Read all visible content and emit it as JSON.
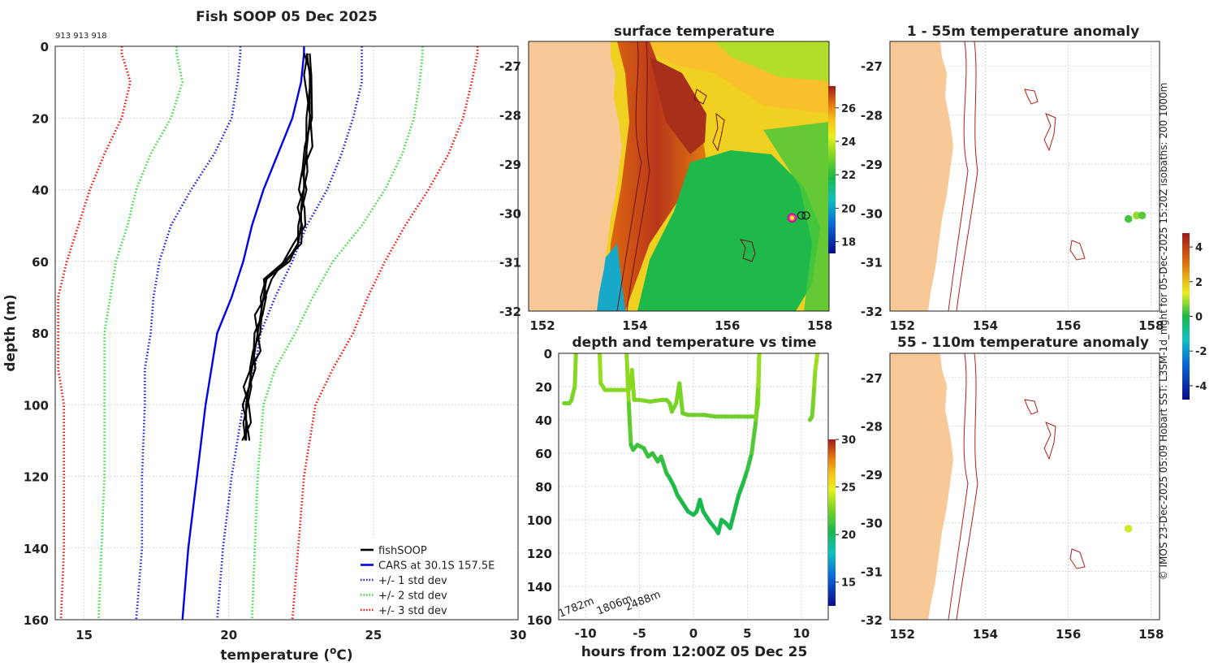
{
  "side_note": "© IMOS 23-Dec-2025 05:09 Hobart SST: L3SM-1d_night for 05-Dec-2025 15:20Z isobaths: 200  1000m",
  "colors": {
    "fishsoop": "#000000",
    "cars": "#0000ee",
    "std1": "#1a1ad8",
    "std2": "#33dd33",
    "std3": "#ee1100",
    "land": "#f8c896",
    "isobath": "#b02018"
  },
  "chart_data": [
    {
      "id": "profile",
      "type": "line",
      "title": "Fish SOOP 05 Dec 2025",
      "top_note": "913 913 918",
      "xlabel": "temperature (",
      "xlabel_sup": "o",
      "xlabel_end": "C)",
      "ylabel": "depth (m)",
      "xlim": [
        14,
        30
      ],
      "ylim": [
        0,
        160
      ],
      "xticks": [
        15,
        20,
        25,
        30
      ],
      "yticks": [
        0,
        20,
        40,
        60,
        80,
        100,
        120,
        140,
        160
      ],
      "legend": [
        "fishSOOP",
        "CARS at 30.1S 157.5E",
        "+/- 1 std dev",
        "+/- 2 std dev",
        "+/- 3 std dev"
      ],
      "depth": [
        0,
        2,
        10,
        20,
        30,
        40,
        50,
        60,
        70,
        80,
        90,
        100,
        120,
        140,
        160
      ],
      "cars": [
        22.6,
        22.6,
        22.5,
        22.2,
        21.7,
        21.2,
        20.8,
        20.5,
        20.1,
        19.6,
        19.4,
        19.2,
        18.9,
        18.6,
        18.4
      ],
      "std1_lo": [
        20.4,
        20.4,
        20.3,
        20.1,
        19.5,
        18.7,
        18.0,
        17.6,
        17.4,
        17.3,
        17.1,
        17.1,
        17.0,
        17.0,
        16.8
      ],
      "std1_hi": [
        24.6,
        24.6,
        24.6,
        24.3,
        23.9,
        23.4,
        22.7,
        22.2,
        21.6,
        21.1,
        20.9,
        20.5,
        20.1,
        19.8,
        19.6
      ],
      "std2_lo": [
        18.2,
        18.2,
        18.4,
        18.0,
        17.3,
        16.8,
        16.5,
        16.1,
        15.9,
        15.7,
        15.7,
        15.7,
        15.7,
        15.6,
        15.5
      ],
      "std2_hi": [
        26.7,
        26.7,
        26.6,
        26.4,
        26.0,
        25.4,
        24.6,
        23.6,
        22.9,
        22.3,
        21.6,
        21.2,
        21.0,
        20.9,
        20.8
      ],
      "std3_lo": [
        16.3,
        16.3,
        16.6,
        16.3,
        15.7,
        15.2,
        14.8,
        14.4,
        14.1,
        14.1,
        14.1,
        14.3,
        14.3,
        14.3,
        14.2
      ],
      "std3_hi": [
        28.6,
        28.6,
        28.4,
        28.1,
        27.6,
        26.9,
        26.1,
        25.4,
        24.8,
        24.3,
        23.6,
        23.0,
        22.6,
        22.4,
        22.2
      ],
      "fish_depth": [
        2,
        8,
        20,
        28,
        35,
        40,
        45,
        50,
        55,
        60,
        65,
        70,
        75,
        80,
        85,
        90,
        95,
        100,
        105,
        110
      ],
      "fish_temp": [
        22.7,
        22.8,
        22.8,
        22.7,
        22.6,
        22.6,
        22.5,
        22.5,
        22.4,
        22.0,
        21.3,
        21.2,
        21.1,
        21.0,
        20.9,
        20.8,
        20.7,
        20.6,
        20.6,
        20.6
      ]
    },
    {
      "id": "sst",
      "type": "heatmap",
      "title": "surface temperature",
      "lon_range": [
        151.7,
        158.2
      ],
      "lat_range": [
        -32,
        -26.5
      ],
      "xticks": [
        152,
        154,
        156,
        158
      ],
      "yticks": [
        -27,
        -28,
        -29,
        -30,
        -31,
        -32
      ],
      "colorbar_ticks": [
        18,
        20,
        22,
        24,
        26
      ],
      "colorbar_range": [
        17.3,
        27.3
      ],
      "markers": [
        {
          "lon": 157.4,
          "lat": -30.1,
          "kind": "highlight"
        },
        {
          "lon": 157.6,
          "lat": -30.05,
          "kind": "open"
        },
        {
          "lon": 157.7,
          "lat": -30.05,
          "kind": "open"
        }
      ]
    },
    {
      "id": "depth-time",
      "type": "line",
      "title": "depth and temperature vs time",
      "xlabel": "hours from 12:00Z 05 Dec 25",
      "xlim": [
        -12.5,
        12.5
      ],
      "ylim": [
        0,
        160
      ],
      "xticks": [
        -10,
        -5,
        0,
        5,
        10
      ],
      "yticks": [
        0,
        20,
        40,
        60,
        80,
        100,
        120,
        140,
        160
      ],
      "colorbar_ticks": [
        15,
        20,
        25,
        30
      ],
      "colorbar_range": [
        12.5,
        30
      ],
      "bottom_depths": [
        "1782m",
        "1806m",
        "2488m"
      ],
      "tracks": [
        {
          "time": [
            -12,
            -11.5,
            -11.3,
            -11.2,
            -11,
            -10.9
          ],
          "depth": [
            30,
            30,
            28,
            25,
            20,
            0
          ],
          "temp": [
            22.5,
            22.5,
            22.5,
            22.6,
            22.8,
            23
          ]
        },
        {
          "time": [
            -8.7,
            -8.6,
            -8.2,
            -7.5,
            -6.5,
            -6.0,
            -5.8,
            -5.7,
            -5.5,
            -5.0,
            -4.0,
            -3.0,
            -2.5,
            -2.2,
            -2.0,
            -1.6,
            -1.3,
            -1.0,
            -0.5,
            0,
            1,
            2,
            3,
            4,
            5,
            5.8,
            6.0,
            6.1
          ],
          "depth": [
            0,
            18,
            22,
            22,
            22,
            22,
            18,
            10,
            28,
            28,
            29,
            28,
            28,
            30,
            35,
            30,
            18,
            36,
            37,
            37,
            37,
            38,
            38,
            38,
            38,
            38,
            30,
            0
          ],
          "temp": [
            23.5,
            23,
            22.9,
            22.9,
            22.9,
            22.9,
            23,
            23.2,
            22.7,
            22.7,
            22.6,
            22.6,
            22.6,
            22.5,
            22.4,
            22.5,
            22.8,
            22.3,
            22.3,
            22.3,
            22.3,
            22.3,
            22.3,
            22.3,
            22.3,
            22.3,
            22.5,
            23.5
          ]
        },
        {
          "time": [
            -6.2,
            -6.0,
            -5.8,
            -5.6,
            -5.2,
            -4.6,
            -4.2,
            -3.8,
            -3.3,
            -3.0,
            -2.5,
            -2.2,
            -1.8,
            -1.5,
            -1.0,
            -0.5,
            0.0,
            0.3,
            0.6,
            0.9,
            1.2,
            1.5,
            2.0,
            2.3,
            2.6,
            3.0,
            3.4,
            3.8,
            4.2,
            4.6,
            5.0,
            5.4,
            5.8,
            6.0,
            6.1
          ],
          "depth": [
            0,
            30,
            55,
            58,
            55,
            57,
            62,
            60,
            65,
            62,
            72,
            75,
            80,
            85,
            90,
            95,
            97,
            95,
            88,
            95,
            98,
            101,
            105,
            108,
            100,
            102,
            105,
            95,
            85,
            78,
            70,
            60,
            40,
            20,
            0
          ],
          "temp": [
            23.5,
            22.6,
            21.3,
            21.2,
            21.3,
            21.2,
            21.1,
            21.1,
            21.0,
            21.1,
            20.8,
            20.7,
            20.6,
            20.5,
            20.4,
            20.3,
            20.3,
            20.3,
            20.4,
            20.3,
            20.3,
            20.3,
            20.2,
            20.2,
            20.3,
            20.3,
            20.2,
            20.3,
            20.5,
            20.6,
            20.8,
            21.2,
            22.2,
            23,
            23.5
          ]
        },
        {
          "time": [
            10.8,
            11.0,
            11.1,
            11.2,
            11.3,
            11.5
          ],
          "depth": [
            40,
            38,
            30,
            20,
            10,
            0
          ],
          "temp": [
            22.3,
            22.3,
            22.5,
            22.8,
            23.2,
            23.5
          ]
        }
      ]
    },
    {
      "id": "anom-shallow",
      "type": "scatter",
      "title": "1 - 55m temperature anomaly",
      "lon_range": [
        151.7,
        158.2
      ],
      "lat_range": [
        -32,
        -26.5
      ],
      "xticks": [
        152,
        154,
        156,
        158
      ],
      "yticks": [
        -27,
        -28,
        -29,
        -30,
        -31,
        -32
      ],
      "colorbar_ticks": [
        -4,
        -2,
        0,
        2,
        4
      ],
      "colorbar_range": [
        -4.8,
        4.8
      ],
      "points": [
        {
          "lon": 157.45,
          "lat": -30.12,
          "anomaly": 0.3
        },
        {
          "lon": 157.65,
          "lat": -30.05,
          "anomaly": 0.8
        },
        {
          "lon": 157.78,
          "lat": -30.05,
          "anomaly": 0.4
        }
      ]
    },
    {
      "id": "anom-deep",
      "type": "scatter",
      "title": "55 - 110m temperature anomaly",
      "lon_range": [
        151.7,
        158.2
      ],
      "lat_range": [
        -32,
        -26.5
      ],
      "xticks": [
        152,
        154,
        156,
        158
      ],
      "yticks": [
        -27,
        -28,
        -29,
        -30,
        -31,
        -32
      ],
      "points": [
        {
          "lon": 157.45,
          "lat": -30.12,
          "anomaly": 1.2
        }
      ]
    }
  ]
}
